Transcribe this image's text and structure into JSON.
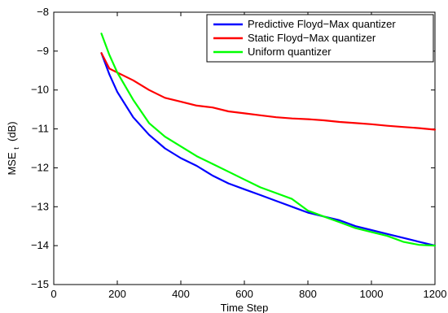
{
  "chart_data": {
    "type": "line",
    "title": "",
    "xlabel": "Time Step",
    "ylabel_main": "MSE",
    "ylabel_sub": "t",
    "ylabel_unit": "(dB)",
    "xlim": [
      0,
      1200
    ],
    "ylim": [
      -15,
      -8
    ],
    "xticks": [
      0,
      200,
      400,
      600,
      800,
      1000,
      1200
    ],
    "yticks": [
      -15,
      -14,
      -13,
      -12,
      -11,
      -10,
      -9,
      -8
    ],
    "xtick_labels": [
      "0",
      "200",
      "400",
      "600",
      "800",
      "1000",
      "1200"
    ],
    "ytick_labels": [
      "−15",
      "−14",
      "−13",
      "−12",
      "−11",
      "−10",
      "−9",
      "−8"
    ],
    "grid": false,
    "legend_position": "top-right",
    "series": [
      {
        "name": "Predictive Floyd−Max quantizer",
        "color": "#0000ff",
        "x": [
          150,
          175,
          200,
          250,
          300,
          350,
          400,
          450,
          500,
          550,
          600,
          650,
          700,
          750,
          800,
          850,
          900,
          950,
          1000,
          1050,
          1100,
          1150,
          1200
        ],
        "y": [
          -9.05,
          -9.6,
          -10.05,
          -10.7,
          -11.15,
          -11.5,
          -11.75,
          -11.95,
          -12.2,
          -12.4,
          -12.55,
          -12.7,
          -12.85,
          -13.0,
          -13.15,
          -13.25,
          -13.35,
          -13.5,
          -13.6,
          -13.7,
          -13.8,
          -13.9,
          -14.0
        ]
      },
      {
        "name": "Static Floyd−Max quantizer",
        "color": "#ff0000",
        "x": [
          150,
          175,
          200,
          250,
          300,
          350,
          400,
          450,
          500,
          550,
          600,
          650,
          700,
          750,
          800,
          850,
          900,
          950,
          1000,
          1050,
          1100,
          1150,
          1200
        ],
        "y": [
          -9.05,
          -9.45,
          -9.55,
          -9.75,
          -10.0,
          -10.2,
          -10.3,
          -10.4,
          -10.45,
          -10.55,
          -10.6,
          -10.65,
          -10.7,
          -10.73,
          -10.75,
          -10.78,
          -10.82,
          -10.85,
          -10.88,
          -10.92,
          -10.95,
          -10.98,
          -11.02
        ]
      },
      {
        "name": "Uniform quantizer",
        "color": "#00ff00",
        "x": [
          150,
          175,
          200,
          250,
          300,
          350,
          400,
          450,
          500,
          550,
          600,
          650,
          700,
          750,
          800,
          850,
          900,
          950,
          1000,
          1050,
          1100,
          1150,
          1200
        ],
        "y": [
          -8.55,
          -9.1,
          -9.55,
          -10.25,
          -10.85,
          -11.2,
          -11.45,
          -11.7,
          -11.9,
          -12.1,
          -12.3,
          -12.5,
          -12.65,
          -12.8,
          -13.1,
          -13.25,
          -13.4,
          -13.55,
          -13.65,
          -13.75,
          -13.9,
          -13.98,
          -14.0
        ]
      }
    ]
  }
}
